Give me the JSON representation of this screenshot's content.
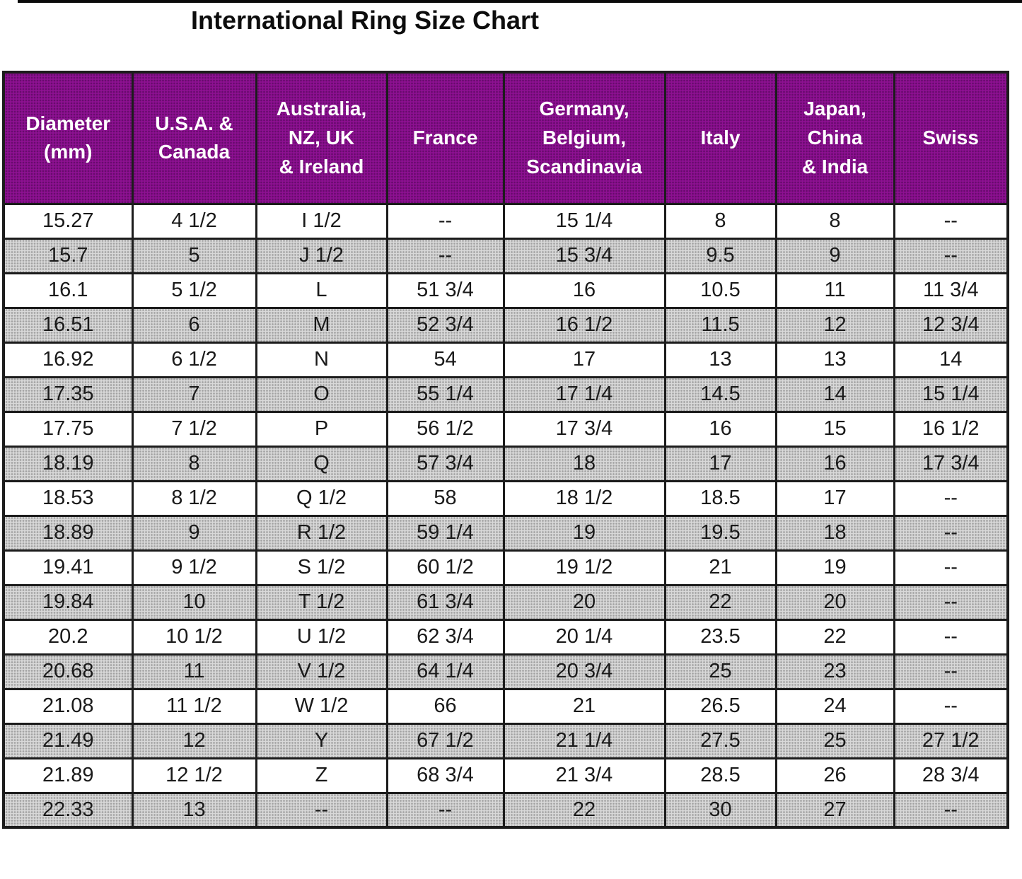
{
  "chart_data": {
    "type": "table",
    "title": "International Ring Size Chart",
    "columns": [
      "Diameter\n(mm)",
      "U.S.A. &\nCanada",
      "Australia,\nNZ, UK\n& Ireland",
      "France",
      "Germany,\nBelgium,\nScandinavia",
      "Italy",
      "Japan,\nChina\n& India",
      "Swiss"
    ],
    "rows": [
      [
        "15.27",
        "4 1/2",
        "I 1/2",
        "--",
        "15 1/4",
        "8",
        "8",
        "--"
      ],
      [
        "15.7",
        "5",
        "J 1/2",
        "--",
        "15 3/4",
        "9.5",
        "9",
        "--"
      ],
      [
        "16.1",
        "5 1/2",
        "L",
        "51 3/4",
        "16",
        "10.5",
        "11",
        "11 3/4"
      ],
      [
        "16.51",
        "6",
        "M",
        "52 3/4",
        "16 1/2",
        "11.5",
        "12",
        "12 3/4"
      ],
      [
        "16.92",
        "6 1/2",
        "N",
        "54",
        "17",
        "13",
        "13",
        "14"
      ],
      [
        "17.35",
        "7",
        "O",
        "55 1/4",
        "17 1/4",
        "14.5",
        "14",
        "15 1/4"
      ],
      [
        "17.75",
        "7 1/2",
        "P",
        "56 1/2",
        "17 3/4",
        "16",
        "15",
        "16 1/2"
      ],
      [
        "18.19",
        "8",
        "Q",
        "57 3/4",
        "18",
        "17",
        "16",
        "17 3/4"
      ],
      [
        "18.53",
        "8 1/2",
        "Q 1/2",
        "58",
        "18 1/2",
        "18.5",
        "17",
        "--"
      ],
      [
        "18.89",
        "9",
        "R 1/2",
        "59 1/4",
        "19",
        "19.5",
        "18",
        "--"
      ],
      [
        "19.41",
        "9 1/2",
        "S 1/2",
        "60 1/2",
        "19 1/2",
        "21",
        "19",
        "--"
      ],
      [
        "19.84",
        "10",
        "T 1/2",
        "61 3/4",
        "20",
        "22",
        "20",
        "--"
      ],
      [
        "20.2",
        "10 1/2",
        "U 1/2",
        "62 3/4",
        "20 1/4",
        "23.5",
        "22",
        "--"
      ],
      [
        "20.68",
        "11",
        "V 1/2",
        "64 1/4",
        "20 3/4",
        "25",
        "23",
        "--"
      ],
      [
        "21.08",
        "11 1/2",
        "W 1/2",
        "66",
        "21",
        "26.5",
        "24",
        "--"
      ],
      [
        "21.49",
        "12",
        "Y",
        "67 1/2",
        "21 1/4",
        "27.5",
        "25",
        "27 1/2"
      ],
      [
        "21.89",
        "12 1/2",
        "Z",
        "68 3/4",
        "21 3/4",
        "28.5",
        "26",
        "28 3/4"
      ],
      [
        "22.33",
        "13",
        "--",
        "--",
        "22",
        "30",
        "27",
        "--"
      ]
    ],
    "layout": {
      "header_bg": "#8e1192",
      "header_text": "#ffffff",
      "alt_row_bg": "#d9d9d9",
      "row_bg": "#ffffff",
      "border_color": "#1c1c1c",
      "striping": "alternate rows shaded gray starting with the second data row",
      "grid": "on"
    }
  }
}
